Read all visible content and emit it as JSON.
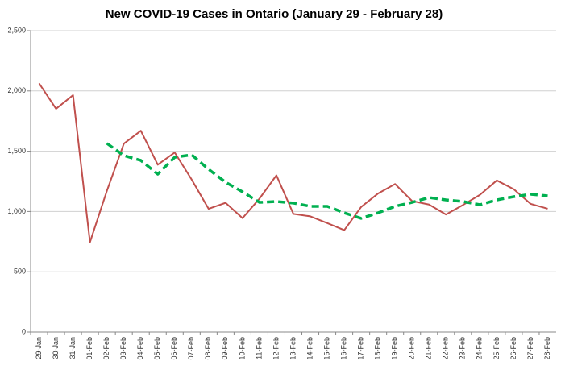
{
  "chart_data": {
    "type": "line",
    "title": "New COVID-19 Cases in Ontario (January 29 - February 28)",
    "categories": [
      "29-Jan",
      "30-Jan",
      "31-Jan",
      "01-Feb",
      "02-Feb",
      "03-Feb",
      "04-Feb",
      "05-Feb",
      "06-Feb",
      "07-Feb",
      "08-Feb",
      "09-Feb",
      "10-Feb",
      "11-Feb",
      "12-Feb",
      "13-Feb",
      "14-Feb",
      "15-Feb",
      "16-Feb",
      "17-Feb",
      "18-Feb",
      "19-Feb",
      "20-Feb",
      "21-Feb",
      "22-Feb",
      "23-Feb",
      "24-Feb",
      "25-Feb",
      "26-Feb",
      "27-Feb",
      "28-Feb"
    ],
    "series": [
      {
        "color": "#c0504d",
        "dashed": false,
        "values": [
          2063,
          1852,
          1965,
          745,
          1172,
          1563,
          1670,
          1388,
          1489,
          1265,
          1022,
          1072,
          945,
          1107,
          1300,
          980,
          960,
          904,
          845,
          1038,
          1150,
          1228,
          1087,
          1058,
          975,
          1054,
          1138,
          1258,
          1185,
          1063,
          1023
        ]
      },
      {
        "color": "#00b050",
        "dashed": true,
        "values": [
          null,
          null,
          null,
          null,
          1565,
          1464,
          1424,
          1310,
          1450,
          1470,
          1350,
          1243,
          1163,
          1076,
          1083,
          1070,
          1043,
          1043,
          989,
          943,
          989,
          1043,
          1076,
          1116,
          1096,
          1083,
          1056,
          1096,
          1123,
          1143,
          1130
        ]
      }
    ],
    "ylim": [
      0,
      2500
    ],
    "yticks": [
      0,
      500,
      {
        "value": 1000,
        "label": "1,000"
      },
      {
        "value": 1500,
        "label": "1,500"
      },
      {
        "value": 2000,
        "label": "2,000"
      },
      {
        "value": 2500,
        "label": "2,500"
      }
    ],
    "grid": true
  }
}
